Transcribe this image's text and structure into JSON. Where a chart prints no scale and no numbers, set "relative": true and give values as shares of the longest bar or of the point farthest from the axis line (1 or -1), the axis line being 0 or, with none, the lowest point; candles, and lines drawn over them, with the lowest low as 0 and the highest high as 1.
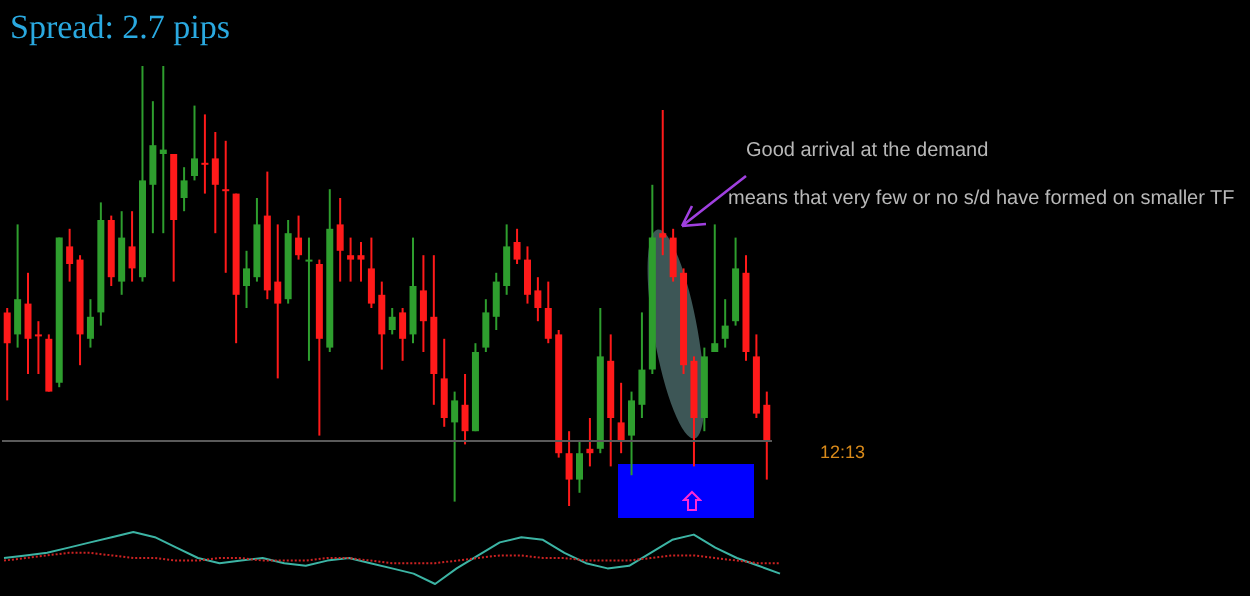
{
  "chart_data": [
    {
      "type": "candlestick",
      "relative": true,
      "categories": [
        null,
        null,
        null,
        null,
        null,
        null,
        null,
        null,
        null,
        null,
        null,
        null,
        null,
        null,
        null,
        null,
        null,
        null,
        null,
        null,
        null,
        null,
        null,
        null,
        null,
        null,
        null,
        null,
        null,
        null,
        null,
        null,
        null,
        null,
        null,
        null,
        null,
        null,
        null,
        null,
        null,
        null,
        null,
        null,
        null,
        null,
        null,
        null,
        null,
        null,
        null,
        null,
        null,
        null,
        null,
        null,
        null,
        null,
        null,
        null,
        null,
        null,
        null,
        null,
        null,
        null,
        null,
        null,
        null,
        null,
        null,
        null,
        null,
        null
      ],
      "ohlc": [
        [
          0.44,
          0.45,
          0.24,
          0.37
        ],
        [
          0.39,
          0.64,
          0.36,
          0.47
        ],
        [
          0.46,
          0.53,
          0.3,
          0.38
        ],
        [
          0.39,
          0.42,
          0.3,
          0.39
        ],
        [
          0.38,
          0.39,
          0.26,
          0.26
        ],
        [
          0.28,
          0.61,
          0.27,
          0.61
        ],
        [
          0.59,
          0.63,
          0.51,
          0.55
        ],
        [
          0.56,
          0.57,
          0.32,
          0.39
        ],
        [
          0.38,
          0.47,
          0.36,
          0.43
        ],
        [
          0.44,
          0.69,
          0.41,
          0.65
        ],
        [
          0.65,
          0.66,
          0.5,
          0.52
        ],
        [
          0.51,
          0.67,
          0.48,
          0.61
        ],
        [
          0.59,
          0.67,
          0.51,
          0.54
        ],
        [
          0.52,
          1,
          0.51,
          0.74
        ],
        [
          0.73,
          0.92,
          0.62,
          0.82
        ],
        [
          0.8,
          1,
          0.62,
          0.81
        ],
        [
          0.8,
          0.8,
          0.51,
          0.65
        ],
        [
          0.7,
          0.77,
          0.67,
          0.74
        ],
        [
          0.75,
          0.91,
          0.74,
          0.79
        ],
        [
          0.78,
          0.89,
          0.71,
          0.78
        ],
        [
          0.79,
          0.85,
          0.62,
          0.73
        ],
        [
          0.72,
          0.83,
          0.53,
          0.72
        ],
        [
          0.71,
          0.71,
          0.37,
          0.48
        ],
        [
          0.5,
          0.58,
          0.45,
          0.54
        ],
        [
          0.52,
          0.7,
          0.51,
          0.64
        ],
        [
          0.66,
          0.76,
          0.47,
          0.49
        ],
        [
          0.51,
          0.64,
          0.29,
          0.46
        ],
        [
          0.47,
          0.65,
          0.46,
          0.62
        ],
        [
          0.61,
          0.66,
          0.56,
          0.57
        ],
        [
          0.56,
          0.61,
          0.33,
          0.56
        ],
        [
          0.55,
          0.56,
          0.16,
          0.38
        ],
        [
          0.36,
          0.72,
          0.35,
          0.63
        ],
        [
          0.64,
          0.7,
          0.51,
          0.58
        ],
        [
          0.57,
          0.61,
          0.51,
          0.56
        ],
        [
          0.57,
          0.6,
          0.51,
          0.56
        ],
        [
          0.54,
          0.61,
          0.45,
          0.46
        ],
        [
          0.48,
          0.51,
          0.31,
          0.39
        ],
        [
          0.4,
          0.45,
          0.39,
          0.43
        ],
        [
          0.44,
          0.45,
          0.33,
          0.38
        ],
        [
          0.39,
          0.61,
          0.37,
          0.5
        ],
        [
          0.49,
          0.57,
          0.35,
          0.42
        ],
        [
          0.43,
          0.57,
          0.23,
          0.3
        ],
        [
          0.29,
          0.38,
          0.18,
          0.2
        ],
        [
          0.19,
          0.26,
          0.01,
          0.24
        ],
        [
          0.23,
          0.3,
          0.14,
          0.17
        ],
        [
          0.17,
          0.37,
          0.17,
          0.35
        ],
        [
          0.36,
          0.47,
          0.35,
          0.44
        ],
        [
          0.43,
          0.53,
          0.4,
          0.51
        ],
        [
          0.5,
          0.64,
          0.48,
          0.59
        ],
        [
          0.6,
          0.63,
          0.55,
          0.56
        ],
        [
          0.56,
          0.59,
          0.46,
          0.48
        ],
        [
          0.49,
          0.52,
          0.42,
          0.45
        ],
        [
          0.45,
          0.51,
          0.37,
          0.38
        ],
        [
          0.39,
          0.4,
          0.11,
          0.12
        ],
        [
          0.12,
          0.17,
          0,
          0.06
        ],
        [
          0.06,
          0.15,
          0.03,
          0.12
        ],
        [
          0.13,
          0.2,
          0.09,
          0.12
        ],
        [
          0.13,
          0.45,
          0.12,
          0.34
        ],
        [
          0.33,
          0.39,
          0.09,
          0.2
        ],
        [
          0.19,
          0.28,
          0.12,
          0.15
        ],
        [
          0.16,
          0.26,
          0.07,
          0.24
        ],
        [
          0.23,
          0.44,
          0.2,
          0.31
        ],
        [
          0.31,
          0.73,
          0.3,
          0.61
        ],
        [
          0.62,
          0.9,
          0.57,
          0.61
        ],
        [
          0.61,
          0.63,
          0.51,
          0.52
        ],
        [
          0.53,
          0.54,
          0.3,
          0.32
        ],
        [
          0.33,
          0.34,
          0.09,
          0.2
        ],
        [
          0.2,
          0.36,
          0.17,
          0.34
        ],
        [
          0.35,
          0.64,
          0.35,
          0.37
        ],
        [
          0.38,
          0.47,
          0.36,
          0.41
        ],
        [
          0.42,
          0.61,
          0.41,
          0.54
        ],
        [
          0.53,
          0.57,
          0.33,
          0.35
        ],
        [
          0.34,
          0.39,
          0.2,
          0.21
        ],
        [
          0.23,
          0.26,
          0.06,
          0.15
        ]
      ],
      "colors": [
        "#ff1a1a",
        "#2e9e2e",
        "#ff1a1a",
        "#ff1a1a",
        "#ff1a1a",
        "#2e9e2e",
        "#ff1a1a",
        "#ff1a1a",
        "#2e9e2e",
        "#2e9e2e",
        "#ff1a1a",
        "#2e9e2e",
        "#ff1a1a",
        "#2e9e2e",
        "#2e9e2e",
        "#2e9e2e",
        "#ff1a1a",
        "#2e9e2e",
        "#2e9e2e",
        "#ff1a1a",
        "#ff1a1a",
        "#ff1a1a",
        "#ff1a1a",
        "#2e9e2e",
        "#2e9e2e",
        "#ff1a1a",
        "#ff1a1a",
        "#2e9e2e",
        "#ff1a1a",
        "#2e9e2e",
        "#ff1a1a",
        "#2e9e2e",
        "#ff1a1a",
        "#ff1a1a",
        "#ff1a1a",
        "#ff1a1a",
        "#ff1a1a",
        "#2e9e2e",
        "#ff1a1a",
        "#2e9e2e",
        "#ff1a1a",
        "#ff1a1a",
        "#ff1a1a",
        "#2e9e2e",
        "#ff1a1a",
        "#2e9e2e",
        "#2e9e2e",
        "#2e9e2e",
        "#2e9e2e",
        "#ff1a1a",
        "#ff1a1a",
        "#ff1a1a",
        "#ff1a1a",
        "#ff1a1a",
        "#ff1a1a",
        "#2e9e2e",
        "#ff1a1a",
        "#2e9e2e",
        "#ff1a1a",
        "#ff1a1a",
        "#2e9e2e",
        "#2e9e2e",
        "#2e9e2e",
        "#ff1a1a",
        "#ff1a1a",
        "#ff1a1a",
        "#ff1a1a",
        "#2e9e2e",
        "#2e9e2e",
        "#2e9e2e",
        "#2e9e2e",
        "#ff1a1a",
        "#ff1a1a",
        "#ff1a1a"
      ],
      "ref_lines": [
        {
          "axis": "y",
          "value": 0.15,
          "color": "#5a5a5a"
        }
      ],
      "annotations": [
        "Spread: 2.7 pips",
        "Good arrival at the demand",
        "means that very few or no s/d have formed on smaller TF",
        "12:13"
      ]
    },
    {
      "type": "line",
      "relative": true,
      "marker": "none",
      "categories": [
        null,
        null,
        null,
        null,
        null,
        null,
        null,
        null,
        null,
        null,
        null,
        null,
        null,
        null,
        null,
        null,
        null,
        null,
        null,
        null,
        null,
        null,
        null,
        null,
        null,
        null,
        null,
        null,
        null,
        null,
        null,
        null,
        null,
        null,
        null,
        null,
        null
      ],
      "series": [
        {
          "color": "#3cb4a4",
          "values": [
            0.5,
            0.55,
            0.6,
            0.7,
            0.8,
            0.9,
            1,
            0.9,
            0.7,
            0.5,
            0.4,
            0.45,
            0.5,
            0.4,
            0.35,
            0.45,
            0.5,
            0.4,
            0.3,
            0.2,
            0,
            0.3,
            0.55,
            0.8,
            0.9,
            0.85,
            0.6,
            0.4,
            0.3,
            0.35,
            0.6,
            0.85,
            0.95,
            0.7,
            0.5,
            0.35,
            0.2
          ]
        },
        {
          "color": "#cc2222",
          "line_style": "dotted",
          "values": [
            0.45,
            0.5,
            0.55,
            0.6,
            0.6,
            0.55,
            0.5,
            0.5,
            0.45,
            0.45,
            0.5,
            0.5,
            0.45,
            0.45,
            0.45,
            0.5,
            0.5,
            0.45,
            0.4,
            0.4,
            0.4,
            0.45,
            0.5,
            0.55,
            0.55,
            0.5,
            0.5,
            0.45,
            0.45,
            0.45,
            0.5,
            0.55,
            0.55,
            0.5,
            0.45,
            0.4,
            0.4
          ]
        }
      ]
    }
  ]
}
